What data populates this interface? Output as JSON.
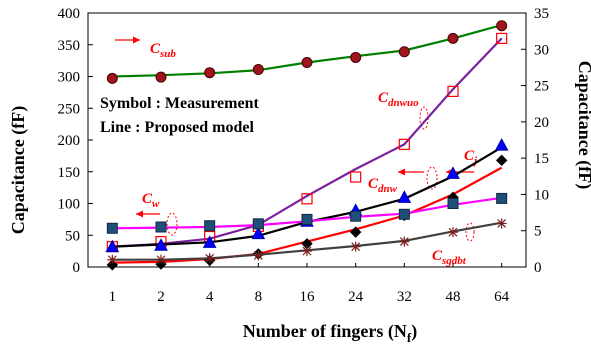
{
  "chart_data": {
    "type": "line",
    "categories": [
      "1",
      "2",
      "4",
      "8",
      "16",
      "24",
      "32",
      "48",
      "64"
    ],
    "xlabel": "Number of fingers (N",
    "xlabel_sub": "f",
    "xlabel_tail": ")",
    "ylabel_left": "Capacitance (fF)",
    "ylabel_right": "Capacitance (fF)",
    "ylim_left": [
      0,
      400
    ],
    "ylim_right": [
      0,
      35
    ],
    "yticks_left": [
      0,
      50,
      100,
      150,
      200,
      250,
      300,
      350,
      400
    ],
    "yticks_right": [
      0,
      5,
      10,
      15,
      20,
      25,
      30,
      35
    ],
    "notes": [
      "Symbol : Measurement",
      "Line : Proposed model"
    ],
    "grid": false,
    "series": [
      {
        "name": "C",
        "sub": "sub",
        "axis": "left",
        "measured": [
          297,
          299,
          306,
          311,
          322,
          330,
          339,
          360,
          380
        ],
        "model": [
          300,
          302,
          305,
          310,
          322,
          332,
          341,
          360,
          381
        ]
      },
      {
        "name": "C",
        "sub": "dnwuo",
        "axis": "right",
        "measured": [
          2.8,
          3.5,
          4.2,
          5.6,
          9.4,
          12.4,
          16.9,
          24.2,
          31.5
        ],
        "model": [
          2.8,
          3.2,
          3.9,
          5.8,
          9.8,
          13.5,
          16.9,
          24.5,
          31.5
        ]
      },
      {
        "name": "C",
        "sub": "dnw",
        "axis": "right",
        "measured": [
          2.8,
          3.0,
          3.4,
          4.6,
          6.3,
          7.8,
          9.6,
          12.9,
          16.8
        ],
        "model": [
          2.8,
          3.1,
          3.4,
          4.3,
          6.2,
          7.6,
          9.4,
          12.5,
          16.5
        ]
      },
      {
        "name": "C",
        "sub": "j",
        "axis": "right",
        "measured": [
          0.3,
          0.4,
          0.9,
          1.8,
          3.2,
          4.8,
          7.1,
          9.6,
          14.7
        ],
        "model": [
          0.6,
          0.7,
          1.1,
          1.8,
          3.5,
          5.2,
          7.1,
          10.0,
          13.7
        ]
      },
      {
        "name": "C",
        "sub": "w",
        "axis": "left",
        "measured": [
          61,
          63,
          65,
          68,
          75,
          80,
          83,
          100,
          108
        ],
        "model": [
          61,
          62,
          63,
          66,
          72,
          79,
          84,
          98,
          109
        ]
      },
      {
        "name": "C",
        "sub": "sgdbt",
        "axis": "right",
        "measured": [
          1.0,
          1.0,
          1.2,
          1.6,
          2.2,
          2.8,
          3.5,
          4.8,
          6.0
        ],
        "model": [
          1.0,
          1.0,
          1.2,
          1.7,
          2.3,
          2.9,
          3.6,
          4.9,
          6.1
        ]
      }
    ]
  }
}
